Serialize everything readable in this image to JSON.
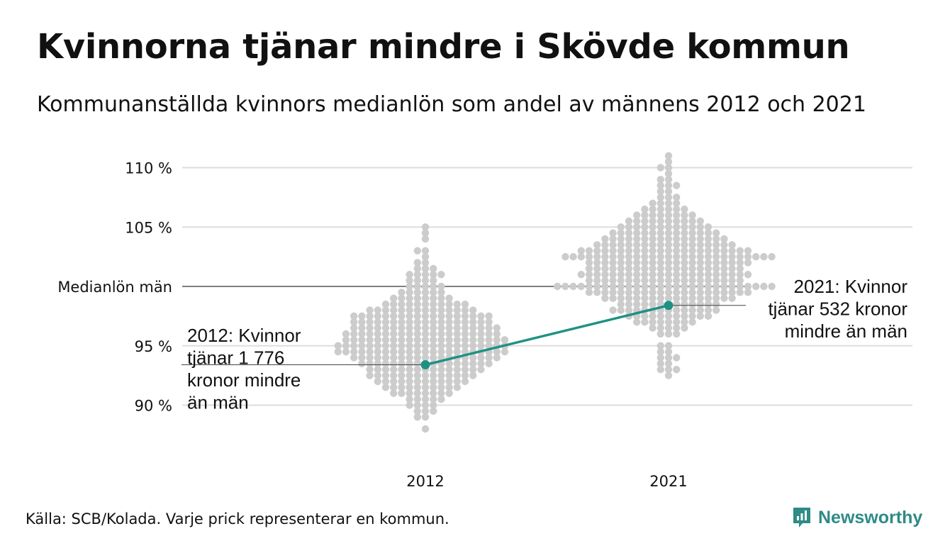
{
  "title": "Kvinnorna tjänar mindre i Skövde kommun",
  "subtitle": "Kommunanställda kvinnors medianlön som andel av männens 2012 och 2021",
  "source": "Källa: SCB/Kolada. Varje prick representerar en kommun.",
  "brand": {
    "name": "Newsworthy",
    "icon": "newsworthy-logo-icon"
  },
  "colors": {
    "dots": "#cccccc",
    "highlight": "#1e9184",
    "grid": "#dddddd",
    "reference": "#333333",
    "text": "#111111"
  },
  "chart_data": {
    "type": "scatter",
    "subtype": "beeswarm",
    "categories": [
      "2012",
      "2021"
    ],
    "ylim": [
      86.5,
      111.5
    ],
    "y_ticks": [
      {
        "value": 90,
        "label": "90 %"
      },
      {
        "value": 95,
        "label": "95 %"
      },
      {
        "value": 105,
        "label": "105 %"
      },
      {
        "value": 110,
        "label": "110 %"
      }
    ],
    "reference_line": {
      "value": 100,
      "label": "Medianlön män"
    },
    "grid": true,
    "highlight": {
      "name": "Skövde",
      "values": [
        {
          "x": "2012",
          "y": 93.4,
          "annotation": [
            "2012: Kvinnor",
            "tjänar 1 776",
            "kronor mindre",
            "än män"
          ]
        },
        {
          "x": "2021",
          "y": 98.4,
          "annotation": [
            "2021: Kvinnor",
            "tjänar 532 kronor",
            "mindre än män"
          ]
        }
      ]
    },
    "distributions": [
      {
        "x": "2012",
        "bins": [
          {
            "y": 88.0,
            "count": 1
          },
          {
            "y": 89.0,
            "count": 2
          },
          {
            "y": 89.5,
            "count": 3
          },
          {
            "y": 90.0,
            "count": 4
          },
          {
            "y": 90.5,
            "count": 5
          },
          {
            "y": 91.0,
            "count": 8
          },
          {
            "y": 91.5,
            "count": 10
          },
          {
            "y": 92.0,
            "count": 12
          },
          {
            "y": 92.5,
            "count": 14
          },
          {
            "y": 93.0,
            "count": 15
          },
          {
            "y": 93.5,
            "count": 17
          },
          {
            "y": 94.0,
            "count": 19
          },
          {
            "y": 94.5,
            "count": 22
          },
          {
            "y": 95.0,
            "count": 22
          },
          {
            "y": 95.5,
            "count": 21
          },
          {
            "y": 96.0,
            "count": 20
          },
          {
            "y": 96.5,
            "count": 19
          },
          {
            "y": 97.0,
            "count": 18
          },
          {
            "y": 97.5,
            "count": 18
          },
          {
            "y": 98.0,
            "count": 14
          },
          {
            "y": 98.5,
            "count": 11
          },
          {
            "y": 99.0,
            "count": 8
          },
          {
            "y": 99.5,
            "count": 6
          },
          {
            "y": 100.0,
            "count": 5
          },
          {
            "y": 100.5,
            "count": 4
          },
          {
            "y": 101.0,
            "count": 5
          },
          {
            "y": 101.5,
            "count": 3
          },
          {
            "y": 102.0,
            "count": 2
          },
          {
            "y": 102.5,
            "count": 1
          },
          {
            "y": 103.0,
            "count": 2
          },
          {
            "y": 104.0,
            "count": 1
          },
          {
            "y": 104.5,
            "count": 1
          },
          {
            "y": 105.0,
            "count": 1
          }
        ]
      },
      {
        "x": "2021",
        "bins": [
          {
            "y": 92.5,
            "count": 1
          },
          {
            "y": 93.0,
            "count": 3
          },
          {
            "y": 93.5,
            "count": 2
          },
          {
            "y": 94.0,
            "count": 3
          },
          {
            "y": 94.5,
            "count": 2
          },
          {
            "y": 95.0,
            "count": 2
          },
          {
            "y": 96.0,
            "count": 3
          },
          {
            "y": 96.5,
            "count": 5
          },
          {
            "y": 97.0,
            "count": 8
          },
          {
            "y": 97.5,
            "count": 11
          },
          {
            "y": 98.0,
            "count": 14
          },
          {
            "y": 98.5,
            "count": 13
          },
          {
            "y": 99.0,
            "count": 17
          },
          {
            "y": 99.5,
            "count": 21
          },
          {
            "y": 100.0,
            "count": 28
          },
          {
            "y": 100.5,
            "count": 20
          },
          {
            "y": 101.0,
            "count": 22
          },
          {
            "y": 101.5,
            "count": 20
          },
          {
            "y": 102.0,
            "count": 21
          },
          {
            "y": 102.5,
            "count": 27
          },
          {
            "y": 103.0,
            "count": 22
          },
          {
            "y": 103.5,
            "count": 18
          },
          {
            "y": 104.0,
            "count": 16
          },
          {
            "y": 104.5,
            "count": 14
          },
          {
            "y": 105.0,
            "count": 12
          },
          {
            "y": 105.5,
            "count": 10
          },
          {
            "y": 106.0,
            "count": 8
          },
          {
            "y": 106.5,
            "count": 6
          },
          {
            "y": 107.0,
            "count": 4
          },
          {
            "y": 107.5,
            "count": 3
          },
          {
            "y": 108.0,
            "count": 2
          },
          {
            "y": 108.5,
            "count": 3
          },
          {
            "y": 109.0,
            "count": 2
          },
          {
            "y": 109.5,
            "count": 1
          },
          {
            "y": 110.0,
            "count": 2
          },
          {
            "y": 110.5,
            "count": 1
          },
          {
            "y": 111.0,
            "count": 1
          }
        ]
      }
    ]
  }
}
